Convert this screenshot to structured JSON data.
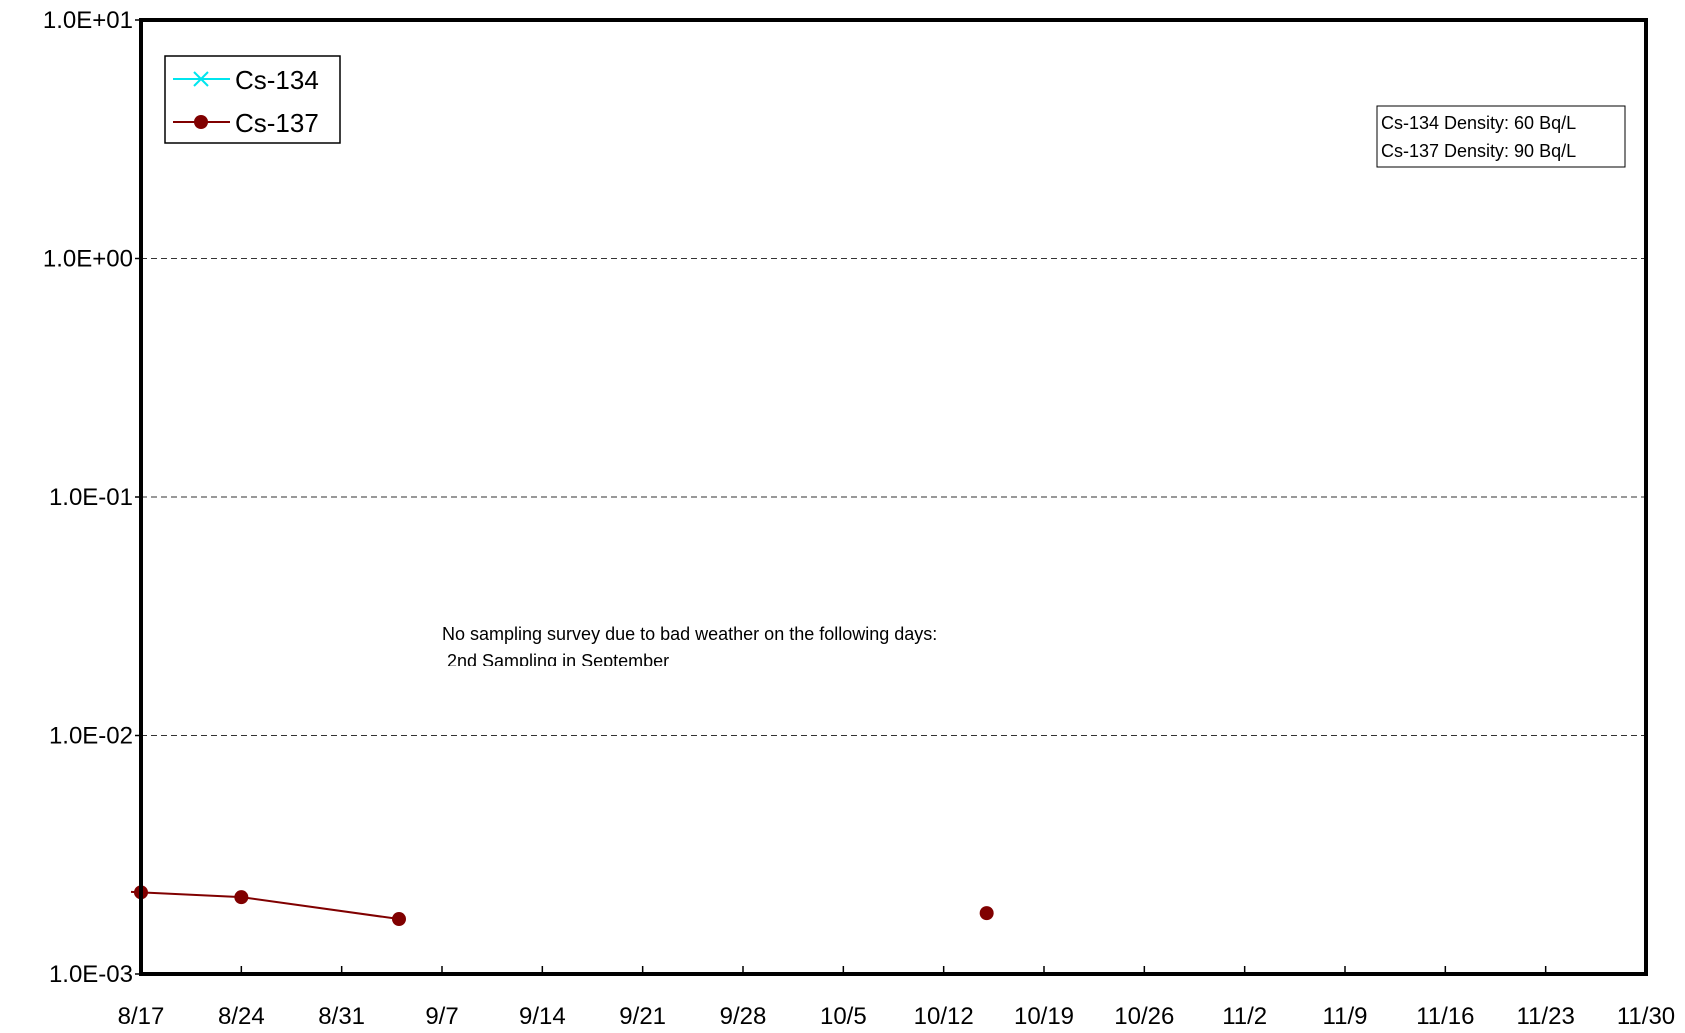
{
  "chart_data": {
    "type": "line",
    "title": "",
    "xlabel": "",
    "ylabel": "",
    "y_scale": "log",
    "ylim": [
      0.001,
      10
    ],
    "y_ticks": [
      "1.0E-03",
      "1.0E-02",
      "1.0E-01",
      "1.0E+00",
      "1.0E+01"
    ],
    "y_tick_values": [
      0.001,
      0.01,
      0.1,
      1,
      10
    ],
    "x_ticks": [
      "8/17",
      "8/24",
      "8/31",
      "9/7",
      "9/14",
      "9/21",
      "9/28",
      "10/5",
      "10/12",
      "10/19",
      "10/26",
      "11/2",
      "11/9",
      "11/16",
      "11/23",
      "11/30"
    ],
    "xlim": [
      "8/17",
      "11/30"
    ],
    "grid": "horizontal dashed at major y ticks",
    "legend_position": "top-left",
    "series": [
      {
        "name": "Cs-134",
        "color": "#00e5ee",
        "marker": "x",
        "points": []
      },
      {
        "name": "Cs-137",
        "color": "#800000",
        "marker": "circle",
        "points": [
          {
            "x": "8/17",
            "y": 0.0022
          },
          {
            "x": "8/24",
            "y": 0.0021
          },
          {
            "x": "9/4",
            "y": 0.0017
          },
          {
            "x": "10/15",
            "y": 0.0018
          }
        ],
        "connected_from": "8/16"
      }
    ],
    "info_box": [
      "Cs-134 Density: 60 Bq/L",
      "Cs-137 Density: 90 Bq/L"
    ],
    "annotation": {
      "line1": "No sampling survey due to bad weather on the following days:",
      "line2": "2nd Sampling in September"
    }
  }
}
